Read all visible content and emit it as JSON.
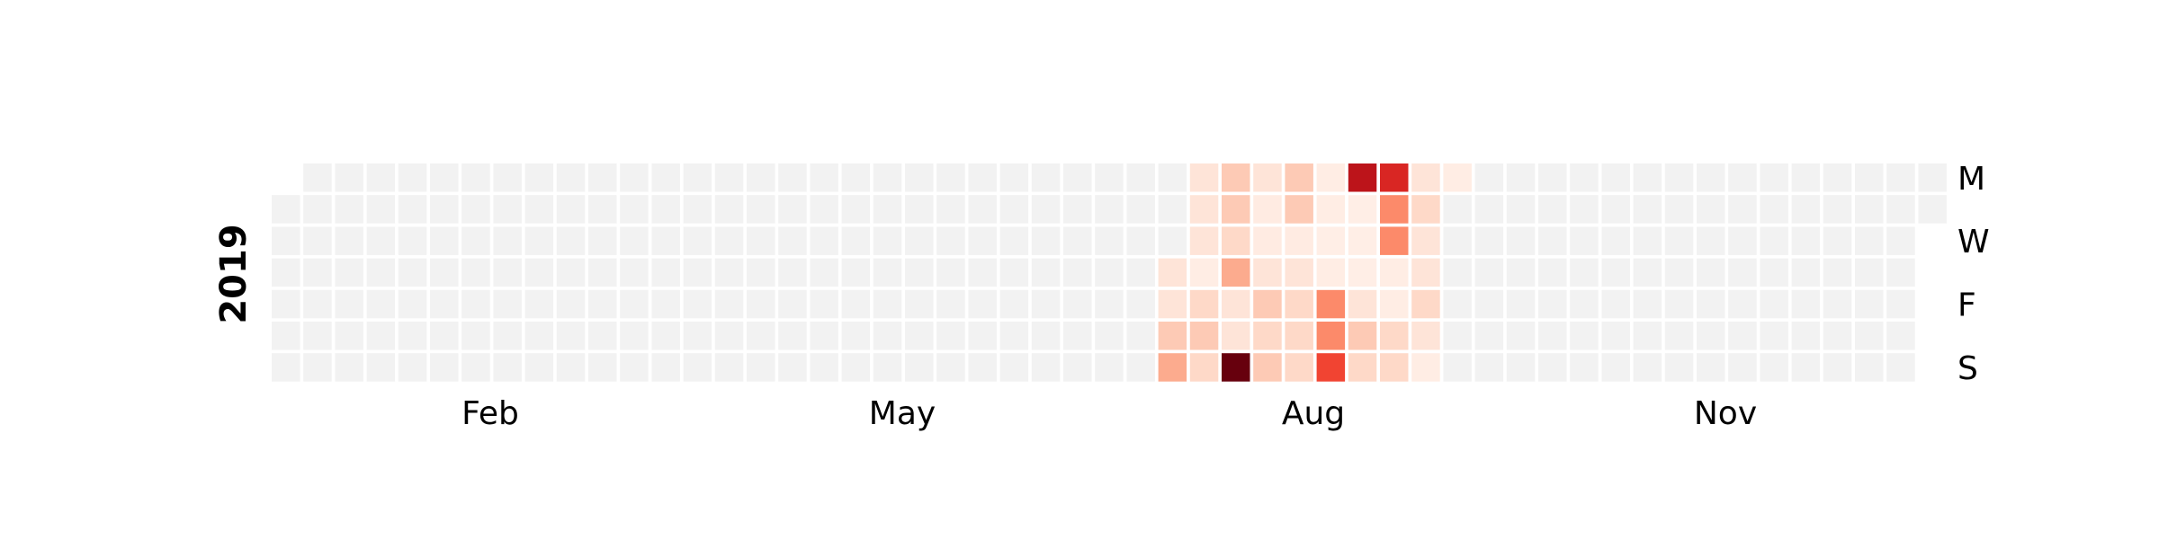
{
  "chart_data": {
    "type": "heatmap",
    "year_label": "2019",
    "layout": "calendar (weeks as columns, weekdays as rows, Monday on top)",
    "colormap": "Reds",
    "empty_color": "#f2f2f2",
    "month_labels": [
      "Feb",
      "May",
      "Aug",
      "Nov"
    ],
    "weekday_labels": [
      "M",
      "W",
      "F",
      "S"
    ],
    "value_range": [
      0,
      10
    ],
    "first_week_offset": 1,
    "last_week_rows": 2,
    "total_weeks": 53,
    "active_weeks": {
      "28": [
        null,
        null,
        null,
        1,
        1,
        2,
        3
      ],
      "29": [
        1,
        1,
        1,
        0.5,
        1.5,
        2,
        1.5
      ],
      "30": [
        2,
        2,
        1.5,
        3,
        1,
        1,
        10
      ],
      "31": [
        1,
        0.6,
        0.6,
        1,
        2,
        1.5,
        2
      ],
      "32": [
        2,
        2,
        0.6,
        1,
        1.5,
        1.5,
        1.5
      ],
      "33": [
        0.5,
        0.5,
        0.4,
        0.5,
        4,
        4,
        6
      ],
      "34": [
        8,
        0.4,
        0.4,
        0.4,
        1,
        2,
        1.5
      ],
      "35": [
        7,
        4,
        4,
        0.5,
        0.5,
        1.5,
        1.5
      ],
      "36": [
        1,
        1.5,
        1,
        1,
        1.5,
        1,
        0.5
      ],
      "37": [
        0.5,
        null,
        null,
        null,
        null,
        null,
        null
      ]
    }
  }
}
